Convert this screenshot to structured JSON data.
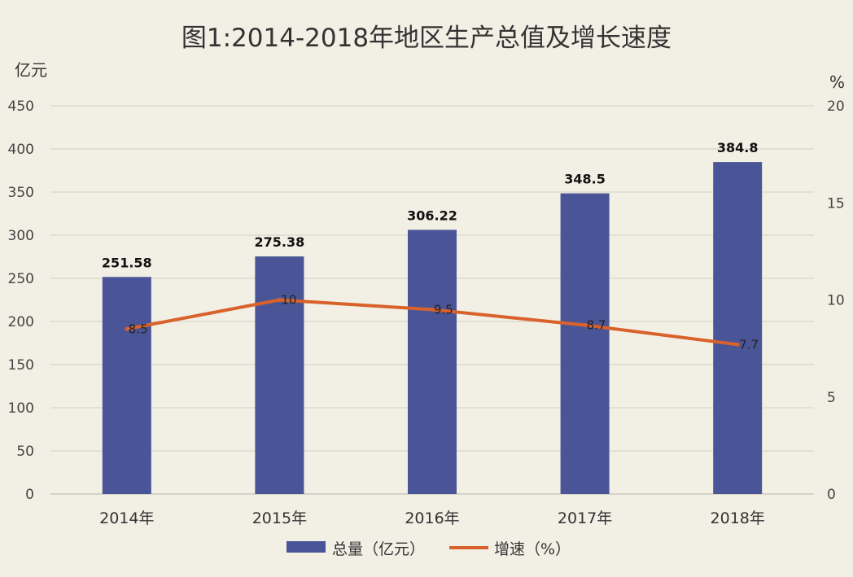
{
  "chart_data": {
    "type": "bar",
    "title": "图1:2014-2018年地区生产总值及增长速度",
    "categories": [
      "2014年",
      "2015年",
      "2016年",
      "2017年",
      "2018年"
    ],
    "y_left": {
      "unit_label": "亿元",
      "min": 0,
      "max": 450,
      "step": 50
    },
    "y_right": {
      "unit_label": "%",
      "min": 0,
      "max": 20,
      "step": 5
    },
    "grid": true,
    "legend_position": "bottom",
    "series": [
      {
        "name": "总量（亿元）",
        "type": "bar",
        "axis": "left",
        "color": "#4a5597",
        "values": [
          251.58,
          275.38,
          306.22,
          348.5,
          384.8
        ],
        "labels": [
          "251.58",
          "275.38",
          "306.22",
          "348.5",
          "384.8"
        ]
      },
      {
        "name": "增速（%）",
        "type": "line",
        "axis": "right",
        "color": "#d9622b",
        "values": [
          8.5,
          10,
          9.5,
          8.7,
          7.7
        ],
        "labels": [
          "8.5",
          "10",
          "9.5",
          "8.7",
          "7.7"
        ]
      }
    ]
  }
}
